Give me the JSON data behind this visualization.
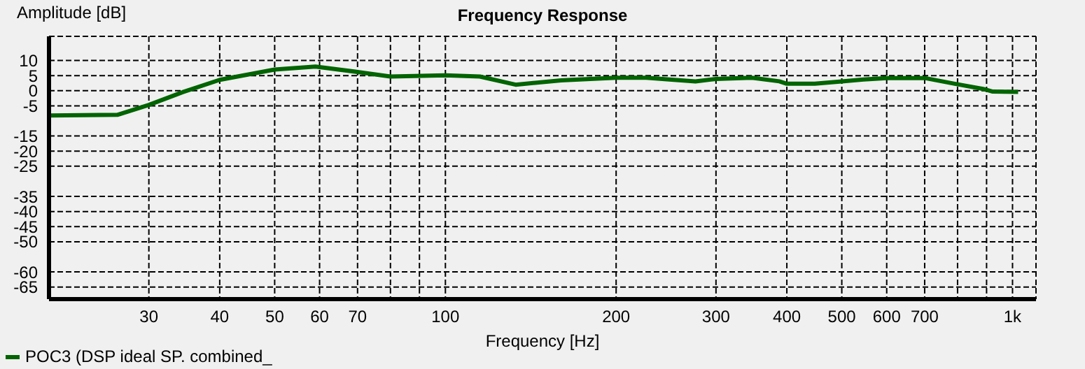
{
  "chart_data": {
    "type": "line",
    "title": "Frequency Response",
    "xlabel": "Frequency [Hz]",
    "ylabel": "Amplitude [dB]",
    "log": "x",
    "grid": true,
    "legend": "bottom left",
    "marker": "none",
    "line_style": "solid",
    "xlim": [
      20,
      1100
    ],
    "ylim": [
      -69,
      18
    ],
    "xticks": [
      30,
      40,
      50,
      60,
      70,
      {
        "value": 80,
        "label": null
      },
      {
        "value": 90,
        "label": null
      },
      100,
      200,
      300,
      400,
      500,
      600,
      700,
      {
        "value": 800,
        "label": null
      },
      {
        "value": 900,
        "label": null
      },
      {
        "value": 1000,
        "label": "1k"
      }
    ],
    "yticks": [
      10,
      5,
      0,
      -5,
      -15,
      -20,
      -25,
      -35,
      -40,
      -45,
      -50,
      -60,
      -65
    ],
    "x": [
      20,
      26.4,
      30,
      34.4,
      40,
      50,
      59,
      70,
      80,
      100,
      115,
      133,
      160,
      180,
      200,
      226,
      253,
      276,
      300,
      347,
      388,
      400,
      448,
      500,
      546,
      600,
      700,
      791,
      887,
      923,
      1023
    ],
    "series": [
      {
        "name": "POC3 (DSP ideal SP. combined_",
        "color": "#006400",
        "values": [
          -8.2,
          -8.0,
          -4.7,
          -0.5,
          3.6,
          7.0,
          8.0,
          6.2,
          4.7,
          5.1,
          4.7,
          2.0,
          3.4,
          3.9,
          4.3,
          4.3,
          3.6,
          3.1,
          3.9,
          4.3,
          3.1,
          2.3,
          2.3,
          3.1,
          3.7,
          4.2,
          4.2,
          2.3,
          0.6,
          -0.3,
          -0.4
        ]
      }
    ]
  }
}
